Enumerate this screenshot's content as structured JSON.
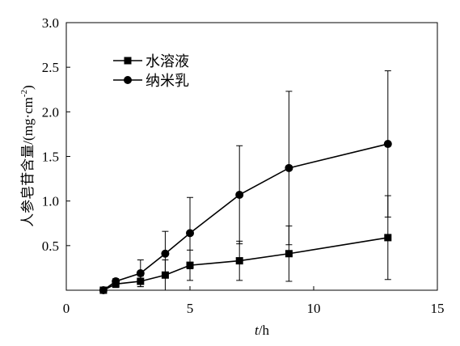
{
  "chart_data": {
    "type": "line",
    "title": "",
    "xlabel_italic": "t",
    "xlabel_rest": "/h",
    "ylabel": "人参皂苷含量/(mg·cm",
    "ylabel_sup": "-2",
    "ylabel_close": ")",
    "xlim": [
      0,
      15
    ],
    "ylim": [
      0,
      3.0
    ],
    "x_ticks": [
      0,
      5,
      10,
      15
    ],
    "x_tick_labels": [
      "0",
      "5",
      "10",
      "15"
    ],
    "y_ticks": [
      0.5,
      1.0,
      1.5,
      2.0,
      2.5,
      3.0
    ],
    "y_tick_labels": [
      "0.5",
      "1.0",
      "1.5",
      "2.0",
      "2.5",
      "3.0"
    ],
    "grid": false,
    "legend_position": "top-left",
    "series": [
      {
        "name": "水溶液",
        "marker": "square",
        "color": "#000000",
        "x": [
          1.5,
          2,
          3,
          4,
          5,
          7,
          9,
          13
        ],
        "y": [
          0.0,
          0.07,
          0.1,
          0.17,
          0.28,
          0.33,
          0.41,
          0.59
        ],
        "err": [
          0.0,
          0.04,
          0.06,
          0.17,
          0.17,
          0.22,
          0.31,
          0.47
        ]
      },
      {
        "name": "纳米乳",
        "marker": "circle",
        "color": "#000000",
        "x": [
          1.5,
          2,
          3,
          4,
          5,
          7,
          9,
          13
        ],
        "y": [
          0.0,
          0.1,
          0.19,
          0.41,
          0.64,
          1.07,
          1.37,
          1.64
        ],
        "err": [
          0.0,
          0.03,
          0.15,
          0.25,
          0.4,
          0.55,
          0.86,
          0.82
        ]
      }
    ]
  }
}
